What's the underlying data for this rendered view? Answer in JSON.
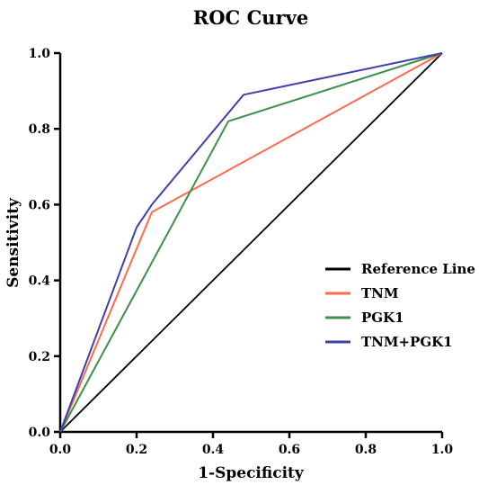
{
  "chart_data": {
    "type": "line",
    "title": "ROC Curve",
    "xlabel": "1-Specificity",
    "ylabel": "Sensitivity",
    "xlim": [
      0,
      1
    ],
    "ylim": [
      0,
      1
    ],
    "x_ticks": [
      "0.0",
      "0.2",
      "0.4",
      "0.6",
      "0.8",
      "1.0"
    ],
    "y_ticks": [
      "0.0",
      "0.2",
      "0.4",
      "0.6",
      "0.8",
      "1.0"
    ],
    "grid": false,
    "legend_position": "bottom-right",
    "series": [
      {
        "name": "Reference Line",
        "color": "#000000",
        "x": [
          0.0,
          1.0
        ],
        "y": [
          0.0,
          1.0
        ]
      },
      {
        "name": "TNM",
        "color": "#ff6a4d",
        "x": [
          0.0,
          0.24,
          1.0
        ],
        "y": [
          0.0,
          0.58,
          1.0
        ]
      },
      {
        "name": "PGK1",
        "color": "#3f8f4a",
        "x": [
          0.0,
          0.44,
          1.0
        ],
        "y": [
          0.0,
          0.82,
          1.0
        ]
      },
      {
        "name": "TNM+PGK1",
        "color": "#3f3fae",
        "x": [
          0.0,
          0.2,
          0.24,
          0.48,
          1.0
        ],
        "y": [
          0.0,
          0.54,
          0.6,
          0.89,
          1.0
        ]
      }
    ]
  }
}
